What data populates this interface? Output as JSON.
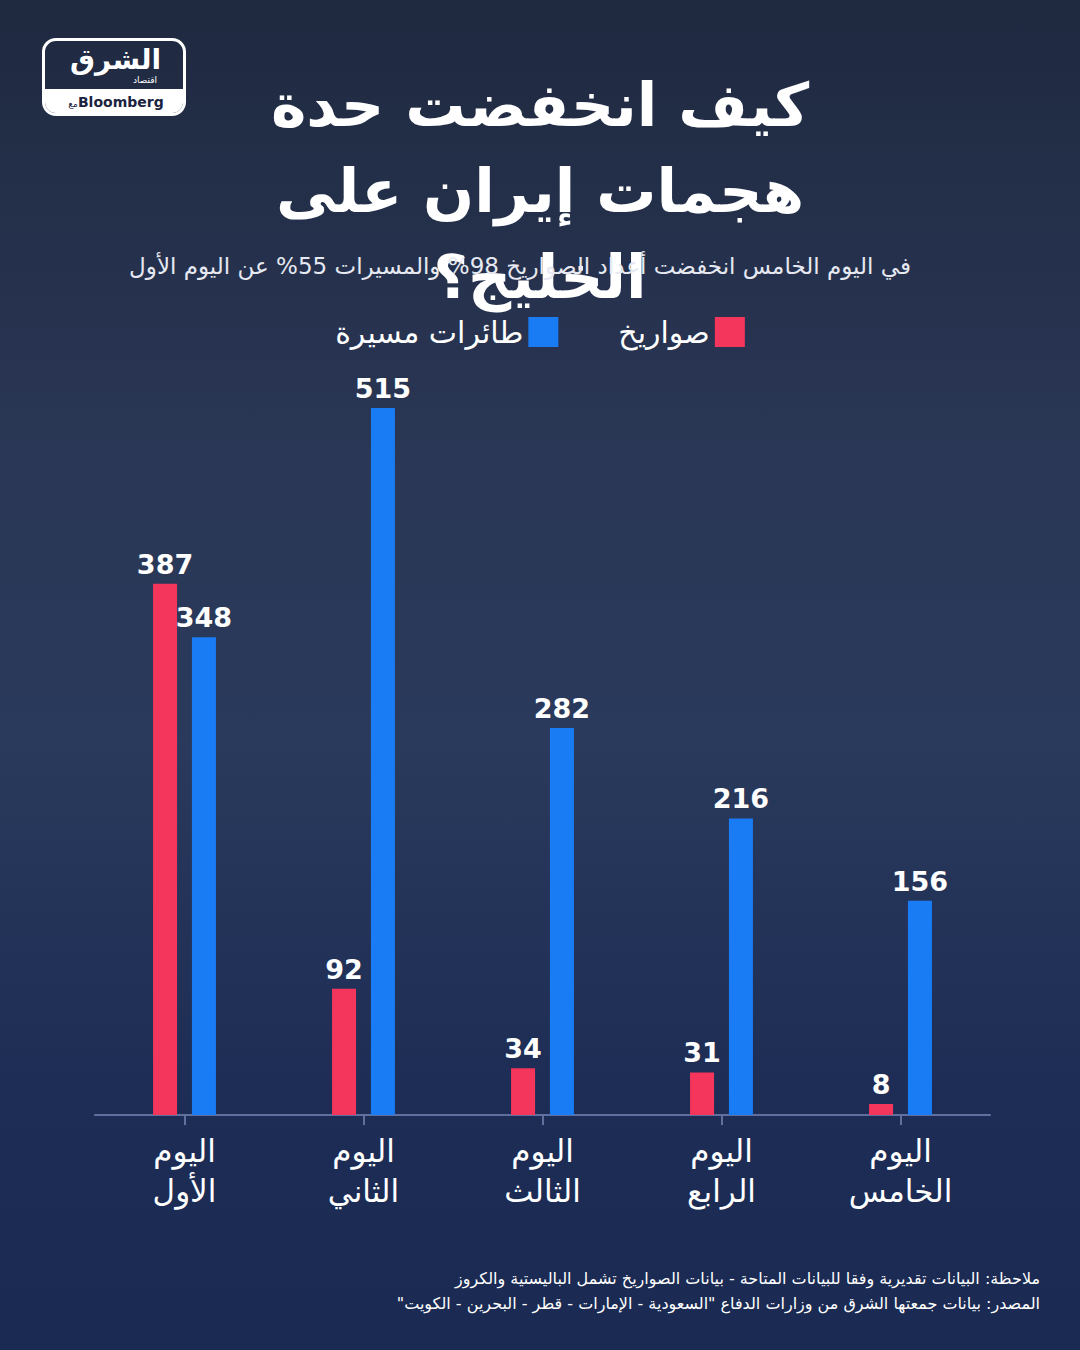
{
  "brand": {
    "name": "الشرق",
    "sub": "اقتصاد",
    "with": "مع",
    "partner": "Bloomberg"
  },
  "chart_data": {
    "type": "bar",
    "title": "كيف انخفضت حدة هجمات إيران على الخليج؟",
    "subtitle": "في اليوم الخامس انخفضت أعداد الصواريخ 98% والمسيرات 55% عن اليوم الأول",
    "categories": [
      "اليوم الأول",
      "اليوم الثاني",
      "اليوم الثالث",
      "اليوم الرابع",
      "اليوم الخامس"
    ],
    "series": [
      {
        "name": "صواريخ",
        "color": "#f5365c",
        "values": [
          387,
          92,
          34,
          31,
          8
        ]
      },
      {
        "name": "طائرات مسيرة",
        "color": "#1a7cf5",
        "values": [
          348,
          515,
          282,
          216,
          156
        ]
      }
    ],
    "ylim": [
      0,
      550
    ],
    "grid": false,
    "legend": "top",
    "data_labels": true,
    "tick_labels": "x",
    "notes": [
      "ملاحظة: البيانات تقديرية وفقا للبيانات المتاحة - بيانات الصواريخ تشمل الباليستية والكروز",
      "المصدر: بيانات جمعتها الشرق من وزارات الدفاع \"السعودية - الإمارات - قطر - البحرين - الكويت\""
    ]
  }
}
